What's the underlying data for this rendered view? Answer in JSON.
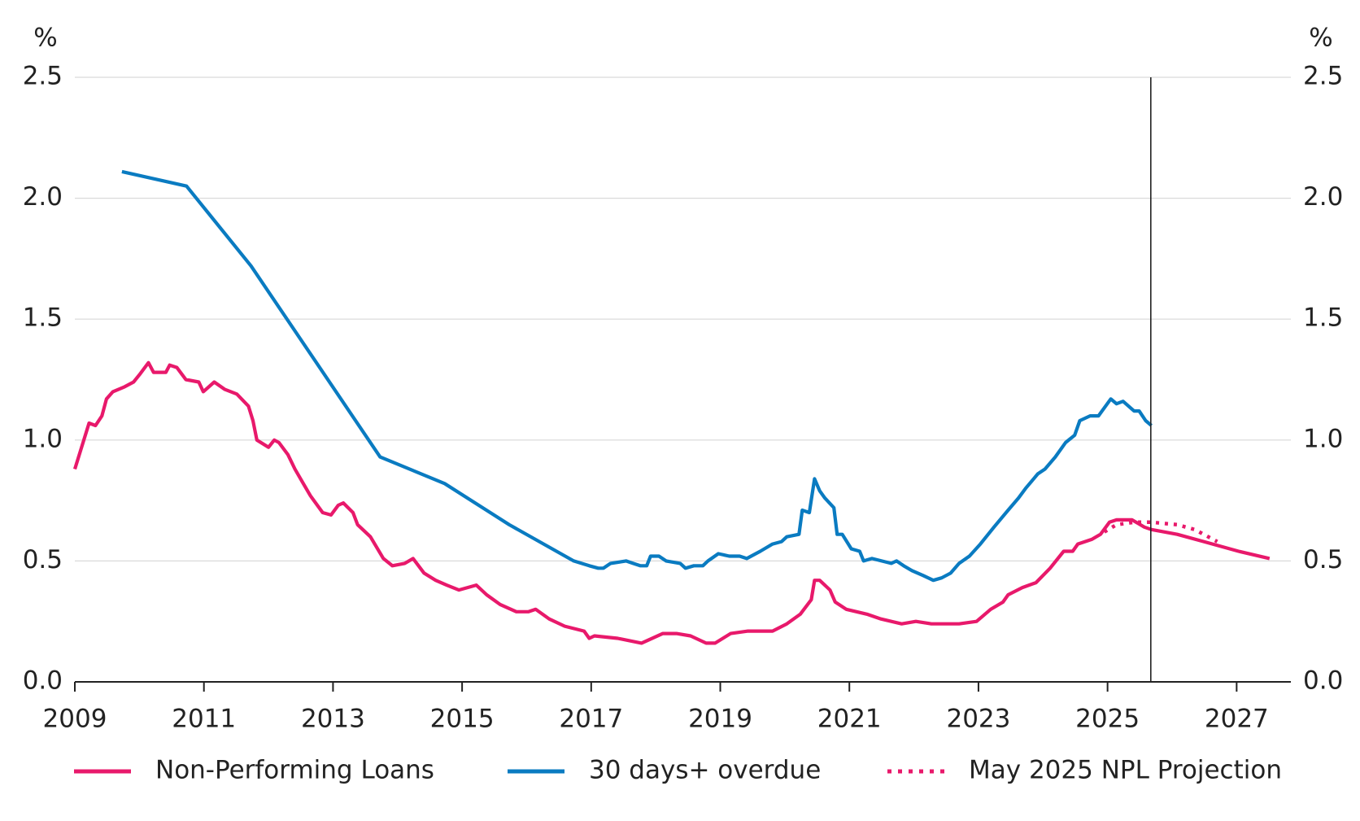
{
  "chart_data": {
    "type": "line",
    "ylabel": "%",
    "y2label": "%",
    "xlim": [
      2009,
      2027.84
    ],
    "xticks": [
      2009,
      2011,
      2013,
      2015,
      2017,
      2019,
      2021,
      2023,
      2025,
      2027
    ],
    "ylim": [
      0,
      2.5
    ],
    "yticks": [
      {
        "value": 0,
        "label": "0.0"
      },
      0.5,
      {
        "value": 1,
        "label": "1.0"
      },
      1.5,
      {
        "value": 2,
        "label": "2.0"
      },
      2.5
    ],
    "y2lim": [
      0,
      2.5
    ],
    "y2ticks": [
      {
        "value": 0,
        "label": "0.0"
      },
      0.5,
      {
        "value": 1,
        "label": "1.0"
      },
      1.5,
      {
        "value": 2,
        "label": "2.0"
      },
      2.5
    ],
    "grid": true,
    "vline": 2025.67,
    "series": [
      {
        "name": "Non-Performing Loans",
        "color": "#e8196b",
        "line_style": "solid",
        "x": [
          2009.0,
          2009.22,
          2009.32,
          2009.42,
          2009.49,
          2009.59,
          2009.77,
          2009.91,
          2010.0,
          2010.14,
          2010.22,
          2010.41,
          2010.47,
          2010.58,
          2010.72,
          2010.92,
          2010.99,
          2011.16,
          2011.32,
          2011.51,
          2011.69,
          2011.76,
          2011.82,
          2012.0,
          2012.09,
          2012.16,
          2012.3,
          2012.41,
          2012.54,
          2012.65,
          2012.84,
          2012.97,
          2013.08,
          2013.16,
          2013.31,
          2013.38,
          2013.58,
          2013.78,
          2013.92,
          2014.11,
          2014.24,
          2014.41,
          2014.59,
          2014.76,
          2014.95,
          2015.22,
          2015.38,
          2015.59,
          2015.84,
          2016.03,
          2016.14,
          2016.35,
          2016.59,
          2016.89,
          2016.97,
          2017.05,
          2017.41,
          2017.78,
          2018.11,
          2018.32,
          2018.54,
          2018.78,
          2018.92,
          2019.16,
          2019.43,
          2019.81,
          2020.03,
          2020.24,
          2020.41,
          2020.46,
          2020.54,
          2020.7,
          2020.78,
          2020.95,
          2021.27,
          2021.49,
          2021.81,
          2022.03,
          2022.27,
          2022.7,
          2022.97,
          2023.19,
          2023.38,
          2023.46,
          2023.68,
          2023.89,
          2024.11,
          2024.32,
          2024.46,
          2024.54,
          2024.76,
          2024.89,
          2025.03,
          2025.14,
          2025.38,
          2025.57,
          2025.68,
          2026.08,
          2026.49,
          2027.03,
          2027.51
        ],
        "values": [
          0.88,
          1.07,
          1.06,
          1.1,
          1.17,
          1.2,
          1.22,
          1.24,
          1.27,
          1.32,
          1.28,
          1.28,
          1.31,
          1.3,
          1.25,
          1.24,
          1.2,
          1.24,
          1.21,
          1.19,
          1.14,
          1.08,
          1.0,
          0.97,
          1.0,
          0.99,
          0.94,
          0.88,
          0.82,
          0.77,
          0.7,
          0.69,
          0.73,
          0.74,
          0.7,
          0.65,
          0.6,
          0.51,
          0.48,
          0.49,
          0.51,
          0.45,
          0.42,
          0.4,
          0.38,
          0.4,
          0.36,
          0.32,
          0.29,
          0.29,
          0.3,
          0.26,
          0.23,
          0.21,
          0.18,
          0.19,
          0.18,
          0.16,
          0.2,
          0.2,
          0.19,
          0.16,
          0.16,
          0.2,
          0.21,
          0.21,
          0.24,
          0.28,
          0.34,
          0.42,
          0.42,
          0.38,
          0.33,
          0.3,
          0.28,
          0.26,
          0.24,
          0.25,
          0.24,
          0.24,
          0.25,
          0.3,
          0.33,
          0.36,
          0.39,
          0.41,
          0.47,
          0.54,
          0.54,
          0.57,
          0.59,
          0.61,
          0.66,
          0.67,
          0.67,
          0.64,
          0.63,
          0.61,
          0.58,
          0.54,
          0.51
        ]
      },
      {
        "name": "30 days+ overdue",
        "color": "#0a7bc1",
        "line_style": "solid",
        "x": [
          2009.73,
          2010.73,
          2011.73,
          2013.73,
          2014.73,
          2015.73,
          2016.73,
          2016.97,
          2017.11,
          2017.19,
          2017.3,
          2017.54,
          2017.65,
          2017.76,
          2017.86,
          2017.92,
          2018.05,
          2018.16,
          2018.38,
          2018.46,
          2018.59,
          2018.73,
          2018.81,
          2018.97,
          2019.14,
          2019.3,
          2019.41,
          2019.62,
          2019.81,
          2019.95,
          2020.03,
          2020.22,
          2020.27,
          2020.38,
          2020.46,
          2020.54,
          2020.62,
          2020.76,
          2020.81,
          2020.89,
          2021.03,
          2021.16,
          2021.22,
          2021.35,
          2021.65,
          2021.73,
          2021.84,
          2021.97,
          2022.14,
          2022.3,
          2022.43,
          2022.57,
          2022.7,
          2022.86,
          2023.03,
          2023.24,
          2023.46,
          2023.62,
          2023.73,
          2023.92,
          2024.03,
          2024.19,
          2024.35,
          2024.49,
          2024.57,
          2024.73,
          2024.86,
          2025.05,
          2025.14,
          2025.24,
          2025.41,
          2025.49,
          2025.59,
          2025.68
        ],
        "values": [
          2.11,
          2.05,
          1.72,
          0.93,
          0.82,
          0.65,
          0.5,
          0.48,
          0.47,
          0.47,
          0.49,
          0.5,
          0.49,
          0.48,
          0.48,
          0.52,
          0.52,
          0.5,
          0.49,
          0.47,
          0.48,
          0.48,
          0.5,
          0.53,
          0.52,
          0.52,
          0.51,
          0.54,
          0.57,
          0.58,
          0.6,
          0.61,
          0.71,
          0.7,
          0.84,
          0.79,
          0.76,
          0.72,
          0.61,
          0.61,
          0.55,
          0.54,
          0.5,
          0.51,
          0.49,
          0.5,
          0.48,
          0.46,
          0.44,
          0.42,
          0.43,
          0.45,
          0.49,
          0.52,
          0.57,
          0.64,
          0.71,
          0.76,
          0.8,
          0.86,
          0.88,
          0.93,
          0.99,
          1.02,
          1.08,
          1.1,
          1.1,
          1.17,
          1.15,
          1.16,
          1.12,
          1.12,
          1.08,
          1.06
        ]
      },
      {
        "name": "May 2025 NPL Projection",
        "color": "#e8196b",
        "line_style": "dotted",
        "x": [
          2024.95,
          2025.14,
          2025.41,
          2025.68,
          2026.08,
          2026.35,
          2026.7
        ],
        "values": [
          0.62,
          0.65,
          0.66,
          0.66,
          0.65,
          0.63,
          0.58
        ]
      }
    ]
  }
}
